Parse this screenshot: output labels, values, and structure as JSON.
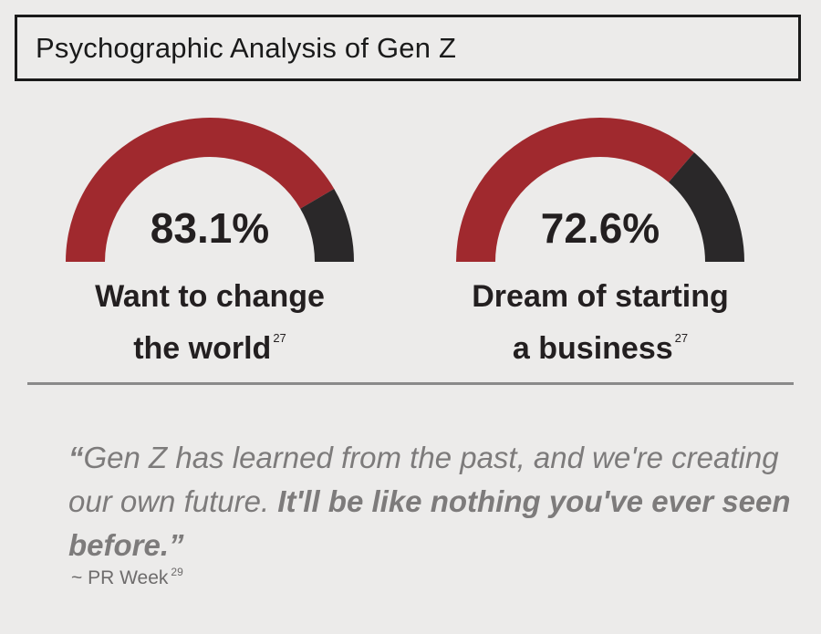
{
  "title": "Psychographic Analysis of Gen Z",
  "colors": {
    "primary": "#a0292e",
    "remainder": "#2a2829",
    "background": "#ecebea"
  },
  "chart_data": [
    {
      "type": "gauge",
      "value": 83.1,
      "max": 100,
      "value_label": "83.1%",
      "label_line1": "Want to change",
      "label_line2": "the world",
      "footnote": "27"
    },
    {
      "type": "gauge",
      "value": 72.6,
      "max": 100,
      "value_label": "72.6%",
      "label_line1": "Dream of starting",
      "label_line2": "a business",
      "footnote": "27"
    }
  ],
  "quote": {
    "open_mark": "“",
    "part1": "Gen Z has learned from the past, and we're creating our own future. ",
    "bold": "It'll be like nothing you've ever seen before.",
    "close_mark": "”"
  },
  "source": {
    "text": "~ PR Week",
    "footnote": "29"
  }
}
